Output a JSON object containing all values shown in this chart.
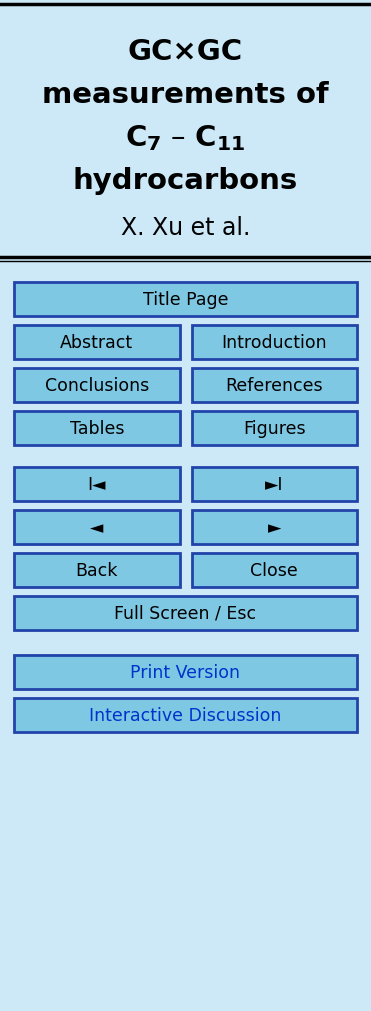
{
  "bg_color": "#cde9f7",
  "border_color": "#000000",
  "title_gcxgc": "GC×GC",
  "title_meas": "measurements of",
  "title_c7c11": "$\\mathbf{C_7}$ – $\\mathbf{C_{11}}$",
  "title_hydro": "hydrocarbons",
  "author": "X. Xu et al.",
  "button_bg": "#7ec8e3",
  "button_border": "#2244aa",
  "button_text_black": "#000000",
  "button_text_blue": "#0033cc",
  "buttons_full": [
    "Title Page",
    "Full Screen / Esc"
  ],
  "buttons_blue": [
    "Print Version",
    "Interactive Discussion"
  ],
  "btn_left": [
    "Abstract",
    "Conclusions",
    "Tables",
    "I◄",
    "◄",
    "Back"
  ],
  "btn_right": [
    "Introduction",
    "References",
    "Figures",
    "►I",
    "►",
    "Close"
  ]
}
